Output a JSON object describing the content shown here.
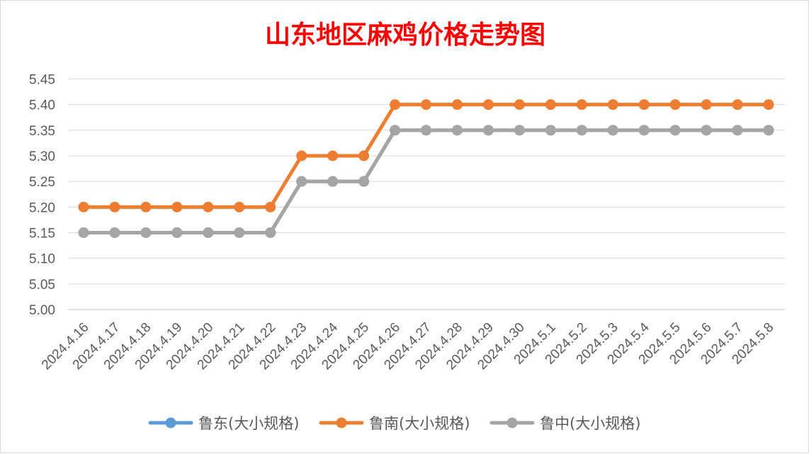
{
  "chart_data": {
    "type": "line",
    "title": "山东地区麻鸡价格走势图",
    "xlabel": "",
    "ylabel": "",
    "ylim": [
      5.0,
      5.45
    ],
    "y_ticks": [
      "5.00",
      "5.05",
      "5.10",
      "5.15",
      "5.20",
      "5.25",
      "5.30",
      "5.35",
      "5.40",
      "5.45"
    ],
    "grid": true,
    "legend_position": "bottom",
    "categories": [
      "2024.4.16",
      "2024.4.17",
      "2024.4.18",
      "2024.4.19",
      "2024.4.20",
      "2024.4.21",
      "2024.4.22",
      "2024.4.23",
      "2024.4.24",
      "2024.4.25",
      "2024.4.26",
      "2024.4.27",
      "2024.4.28",
      "2024.4.29",
      "2024.4.30",
      "2024.5.1",
      "2024.5.2",
      "2024.5.3",
      "2024.5.4",
      "2024.5.5",
      "2024.5.6",
      "2024.5.7",
      "2024.5.8"
    ],
    "series": [
      {
        "name": "鲁东(大小规格)",
        "color": "#5b9bd5",
        "values": [
          5.15,
          5.15,
          5.15,
          5.15,
          5.15,
          5.15,
          5.15,
          5.25,
          5.25,
          5.25,
          5.35,
          5.35,
          5.35,
          5.35,
          5.35,
          5.35,
          5.35,
          5.35,
          5.35,
          5.35,
          5.35,
          5.35,
          5.35
        ]
      },
      {
        "name": "鲁南(大小规格)",
        "color": "#ed7d31",
        "values": [
          5.2,
          5.2,
          5.2,
          5.2,
          5.2,
          5.2,
          5.2,
          5.3,
          5.3,
          5.3,
          5.4,
          5.4,
          5.4,
          5.4,
          5.4,
          5.4,
          5.4,
          5.4,
          5.4,
          5.4,
          5.4,
          5.4,
          5.4
        ]
      },
      {
        "name": "鲁中(大小规格)",
        "color": "#a5a5a5",
        "values": [
          5.15,
          5.15,
          5.15,
          5.15,
          5.15,
          5.15,
          5.15,
          5.25,
          5.25,
          5.25,
          5.35,
          5.35,
          5.35,
          5.35,
          5.35,
          5.35,
          5.35,
          5.35,
          5.35,
          5.35,
          5.35,
          5.35,
          5.35
        ]
      }
    ]
  }
}
